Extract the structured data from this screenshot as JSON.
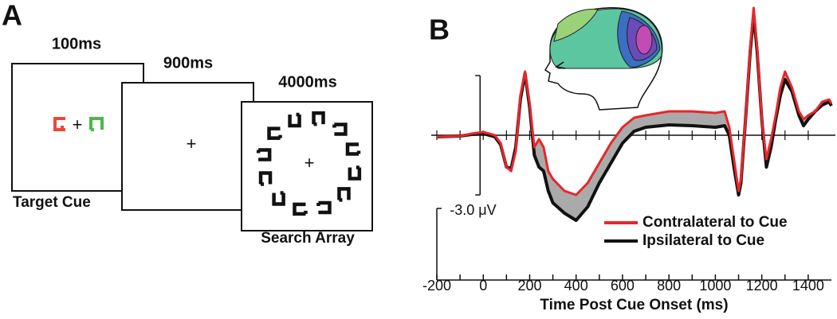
{
  "panel_a": {
    "label": "A",
    "fixation": "+",
    "frames": [
      {
        "duration": "100ms",
        "caption": "Target Cue"
      },
      {
        "duration": "900ms"
      },
      {
        "duration": "4000ms",
        "caption": "Search Array"
      }
    ]
  },
  "chart_data": {
    "type": "line",
    "panel_label": "B",
    "x_label": "Time Post Cue Onset (ms)",
    "x": [
      -200,
      -100,
      -50,
      0,
      50,
      75,
      100,
      120,
      140,
      160,
      180,
      200,
      220,
      240,
      260,
      280,
      300,
      350,
      400,
      450,
      500,
      550,
      600,
      650,
      700,
      800,
      900,
      1000,
      1040,
      1060,
      1080,
      1100,
      1110,
      1130,
      1150,
      1165,
      1180,
      1200,
      1220,
      1240,
      1260,
      1280,
      1300,
      1330,
      1360,
      1380,
      1400,
      1430,
      1460,
      1490,
      1500
    ],
    "series": [
      {
        "name": "Contralateral to Cue",
        "color": "#e8262a",
        "values": [
          -0.04,
          -0.02,
          0.04,
          0.08,
          0,
          -0.2,
          -0.8,
          -0.9,
          -0.4,
          1.0,
          1.6,
          0.8,
          -0.3,
          -0.1,
          -0.3,
          -0.9,
          -1.1,
          -1.4,
          -1.5,
          -1.2,
          -0.7,
          -0.2,
          0.2,
          0.44,
          0.5,
          0.6,
          0.6,
          0.56,
          0.6,
          0.2,
          -0.6,
          -1.4,
          -1.1,
          0.4,
          2.2,
          3.2,
          2.2,
          0.4,
          -0.6,
          -0.1,
          0.5,
          1.2,
          1.6,
          1.2,
          0.6,
          0.4,
          0.5,
          0.6,
          0.84,
          0.9,
          0.8
        ]
      },
      {
        "name": "Ipsilateral to Cue",
        "color": "#111111",
        "values": [
          -0.04,
          -0.02,
          0.02,
          0.04,
          -0.04,
          -0.24,
          -0.8,
          -0.84,
          -0.3,
          0.9,
          1.56,
          0.7,
          -0.5,
          -0.8,
          -0.9,
          -1.4,
          -1.7,
          -1.96,
          -2.14,
          -1.8,
          -1.2,
          -0.7,
          -0.2,
          0.1,
          0.2,
          0.26,
          0.24,
          0.2,
          0.24,
          0,
          -0.8,
          -1.5,
          -1.2,
          0.4,
          2.1,
          3.04,
          2.1,
          0.4,
          -0.8,
          -0.3,
          0.4,
          1.0,
          1.4,
          1.1,
          0.5,
          0.24,
          0.4,
          0.6,
          0.76,
          0.84,
          0.74
        ]
      }
    ],
    "difference_fill": "#aaaaaa",
    "xlim": [
      -200,
      1500
    ],
    "xticks": [
      -200,
      0,
      200,
      400,
      600,
      800,
      1000,
      1200,
      1400
    ],
    "xminorticks": [
      -100,
      100,
      300,
      500,
      700,
      900,
      1100,
      1300
    ],
    "ylim": [
      -2.5,
      3.3
    ],
    "scale_bar": {
      "value": -3.0,
      "label": "-3.0 μV"
    }
  }
}
